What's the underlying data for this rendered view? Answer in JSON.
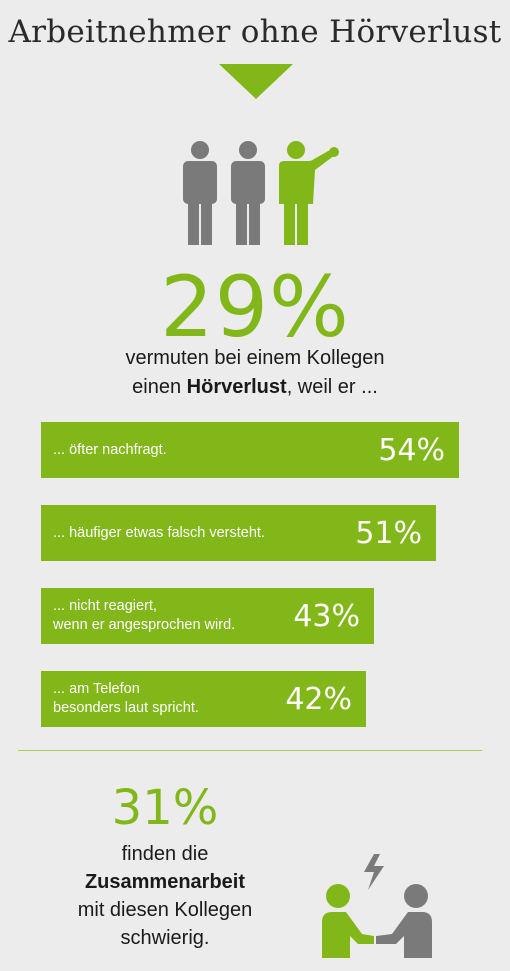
{
  "title": "Arbeitnehmer ohne Hörverlust",
  "headline": {
    "value": "29%",
    "line1": "vermuten bei einem Kollegen",
    "line2_pre": "einen ",
    "line2_bold": "Hörverlust",
    "line2_post": ", weil er ..."
  },
  "chart_data": {
    "type": "bar",
    "orientation": "horizontal",
    "categories": [
      "... öfter nachfragt.",
      "... häufiger etwas falsch versteht.",
      "... nicht reagiert,\nwenn er angesprochen wird.",
      "... am Telefon\nbesonders laut spricht."
    ],
    "values": [
      54,
      51,
      43,
      42
    ],
    "value_labels": [
      "54%",
      "51%",
      "43%",
      "42%"
    ],
    "color": "#82b71a"
  },
  "secondary": {
    "value": "31%",
    "line1": "finden die",
    "line2_bold": "Zusammenarbeit",
    "line3": "mit diesen Kollegen",
    "line4": "schwierig."
  },
  "colors": {
    "accent": "#82b71a",
    "grey": "#7a7a7a",
    "background": "#ececec"
  },
  "icons": [
    "three-people-icon",
    "two-people-conflict-icon"
  ]
}
